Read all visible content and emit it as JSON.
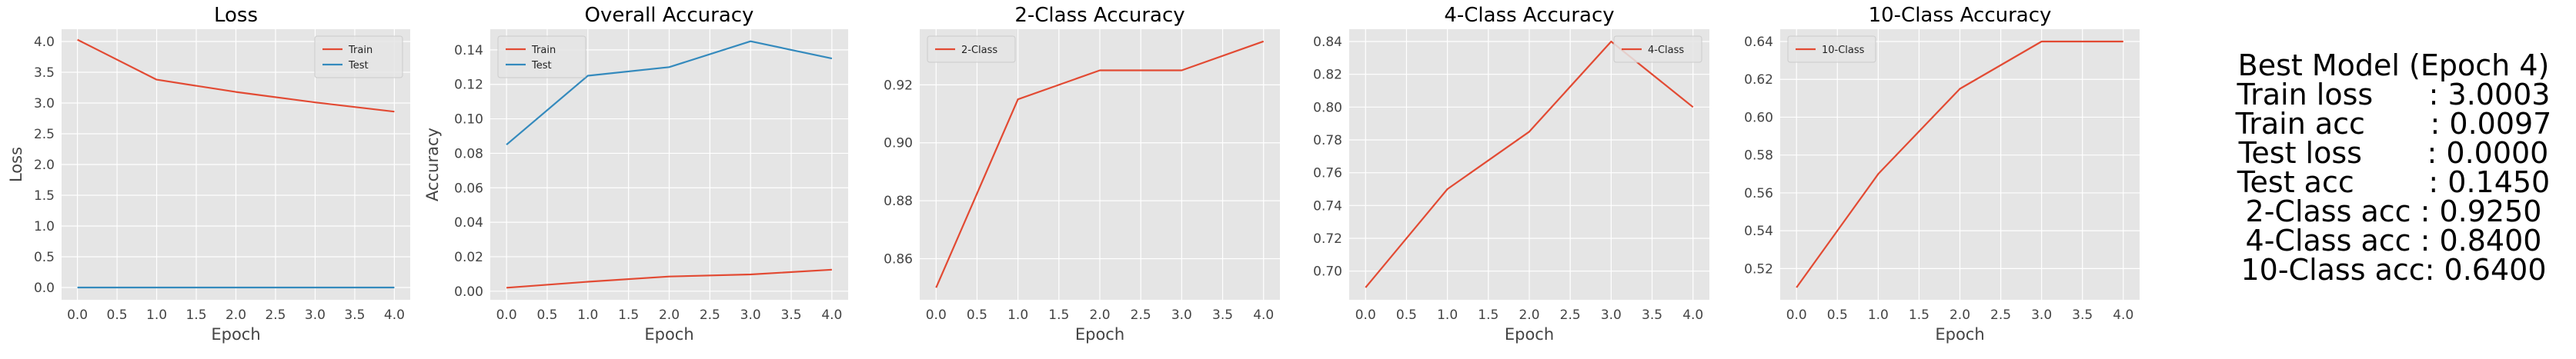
{
  "colors": {
    "train": "#E24A33",
    "test": "#348ABD",
    "panel_bg": "#E5E5E5",
    "grid": "#FFFFFF"
  },
  "chart_data": [
    {
      "type": "line",
      "title": "Loss",
      "xlabel": "Epoch",
      "ylabel": "Loss",
      "x": [
        0,
        1,
        2,
        3,
        4
      ],
      "xticks": [
        0.0,
        0.5,
        1.0,
        1.5,
        2.0,
        2.5,
        3.0,
        3.5,
        4.0
      ],
      "xtick_labels": [
        "0.0",
        "0.5",
        "1.0",
        "1.5",
        "2.0",
        "2.5",
        "3.0",
        "3.5",
        "4.0"
      ],
      "yticks": [
        0.0,
        0.5,
        1.0,
        1.5,
        2.0,
        2.5,
        3.0,
        3.5,
        4.0
      ],
      "ytick_labels": [
        "0.0",
        "0.5",
        "1.0",
        "1.5",
        "2.0",
        "2.5",
        "3.0",
        "3.5",
        "4.0"
      ],
      "xlim": [
        -0.2,
        4.2
      ],
      "ylim": [
        -0.2,
        4.2
      ],
      "grid": true,
      "legend": "top-right",
      "series": [
        {
          "name": "Train",
          "color": "#E24A33",
          "values": [
            4.03,
            3.38,
            3.18,
            3.01,
            2.86
          ]
        },
        {
          "name": "Test",
          "color": "#348ABD",
          "values": [
            0.0,
            0.0,
            0.0,
            0.0,
            0.0
          ]
        }
      ]
    },
    {
      "type": "line",
      "title": "Overall Accuracy",
      "xlabel": "Epoch",
      "ylabel": "Accuracy",
      "x": [
        0,
        1,
        2,
        3,
        4
      ],
      "xticks": [
        0.0,
        0.5,
        1.0,
        1.5,
        2.0,
        2.5,
        3.0,
        3.5,
        4.0
      ],
      "xtick_labels": [
        "0.0",
        "0.5",
        "1.0",
        "1.5",
        "2.0",
        "2.5",
        "3.0",
        "3.5",
        "4.0"
      ],
      "yticks": [
        0.0,
        0.02,
        0.04,
        0.06,
        0.08,
        0.1,
        0.12,
        0.14
      ],
      "ytick_labels": [
        "0.00",
        "0.02",
        "0.04",
        "0.06",
        "0.08",
        "0.10",
        "0.12",
        "0.14"
      ],
      "xlim": [
        -0.2,
        4.2
      ],
      "ylim": [
        -0.005,
        0.152
      ],
      "grid": true,
      "legend": "top-left",
      "series": [
        {
          "name": "Train",
          "color": "#E24A33",
          "values": [
            0.002,
            0.0055,
            0.0085,
            0.0097,
            0.0125
          ]
        },
        {
          "name": "Test",
          "color": "#348ABD",
          "values": [
            0.085,
            0.125,
            0.13,
            0.145,
            0.135
          ]
        }
      ]
    },
    {
      "type": "line",
      "title": "2-Class Accuracy",
      "xlabel": "Epoch",
      "ylabel": "",
      "x": [
        0,
        1,
        2,
        3,
        4
      ],
      "xticks": [
        0.0,
        0.5,
        1.0,
        1.5,
        2.0,
        2.5,
        3.0,
        3.5,
        4.0
      ],
      "xtick_labels": [
        "0.0",
        "0.5",
        "1.0",
        "1.5",
        "2.0",
        "2.5",
        "3.0",
        "3.5",
        "4.0"
      ],
      "yticks": [
        0.86,
        0.88,
        0.9,
        0.92
      ],
      "ytick_labels": [
        "0.86",
        "0.88",
        "0.90",
        "0.92"
      ],
      "xlim": [
        -0.2,
        4.2
      ],
      "ylim": [
        0.8458,
        0.9392
      ],
      "grid": true,
      "legend": "top-left",
      "series": [
        {
          "name": "2-Class",
          "color": "#E24A33",
          "values": [
            0.85,
            0.915,
            0.925,
            0.925,
            0.935
          ]
        }
      ]
    },
    {
      "type": "line",
      "title": "4-Class Accuracy",
      "xlabel": "Epoch",
      "ylabel": "",
      "x": [
        0,
        1,
        2,
        3,
        4
      ],
      "xticks": [
        0.0,
        0.5,
        1.0,
        1.5,
        2.0,
        2.5,
        3.0,
        3.5,
        4.0
      ],
      "xtick_labels": [
        "0.0",
        "0.5",
        "1.0",
        "1.5",
        "2.0",
        "2.5",
        "3.0",
        "3.5",
        "4.0"
      ],
      "yticks": [
        0.7,
        0.72,
        0.74,
        0.76,
        0.78,
        0.8,
        0.82,
        0.84
      ],
      "ytick_labels": [
        "0.70",
        "0.72",
        "0.74",
        "0.76",
        "0.78",
        "0.80",
        "0.82",
        "0.84"
      ],
      "xlim": [
        -0.2,
        4.2
      ],
      "ylim": [
        0.6825,
        0.8475
      ],
      "grid": true,
      "legend": "top-right",
      "series": [
        {
          "name": "4-Class",
          "color": "#E24A33",
          "values": [
            0.69,
            0.75,
            0.785,
            0.84,
            0.8
          ]
        }
      ]
    },
    {
      "type": "line",
      "title": "10-Class Accuracy",
      "xlabel": "Epoch",
      "ylabel": "",
      "x": [
        0,
        1,
        2,
        3,
        4
      ],
      "xticks": [
        0.0,
        0.5,
        1.0,
        1.5,
        2.0,
        2.5,
        3.0,
        3.5,
        4.0
      ],
      "xtick_labels": [
        "0.0",
        "0.5",
        "1.0",
        "1.5",
        "2.0",
        "2.5",
        "3.0",
        "3.5",
        "4.0"
      ],
      "yticks": [
        0.52,
        0.54,
        0.56,
        0.58,
        0.6,
        0.62,
        0.64
      ],
      "ytick_labels": [
        "0.52",
        "0.54",
        "0.56",
        "0.58",
        "0.60",
        "0.62",
        "0.64"
      ],
      "xlim": [
        -0.2,
        4.2
      ],
      "ylim": [
        0.5035,
        0.6465
      ],
      "grid": true,
      "legend": "top-left",
      "series": [
        {
          "name": "10-Class",
          "color": "#E24A33",
          "values": [
            0.51,
            0.57,
            0.615,
            0.64,
            0.64
          ]
        }
      ]
    }
  ],
  "summary": {
    "lines": [
      "Best Model (Epoch 4)",
      "Train loss      : 3.0003",
      "Train acc       : 0.0097",
      "Test loss       : 0.0000",
      "Test acc        : 0.1450",
      "2-Class acc : 0.9250",
      "4-Class acc : 0.8400",
      "10-Class acc: 0.6400"
    ]
  }
}
